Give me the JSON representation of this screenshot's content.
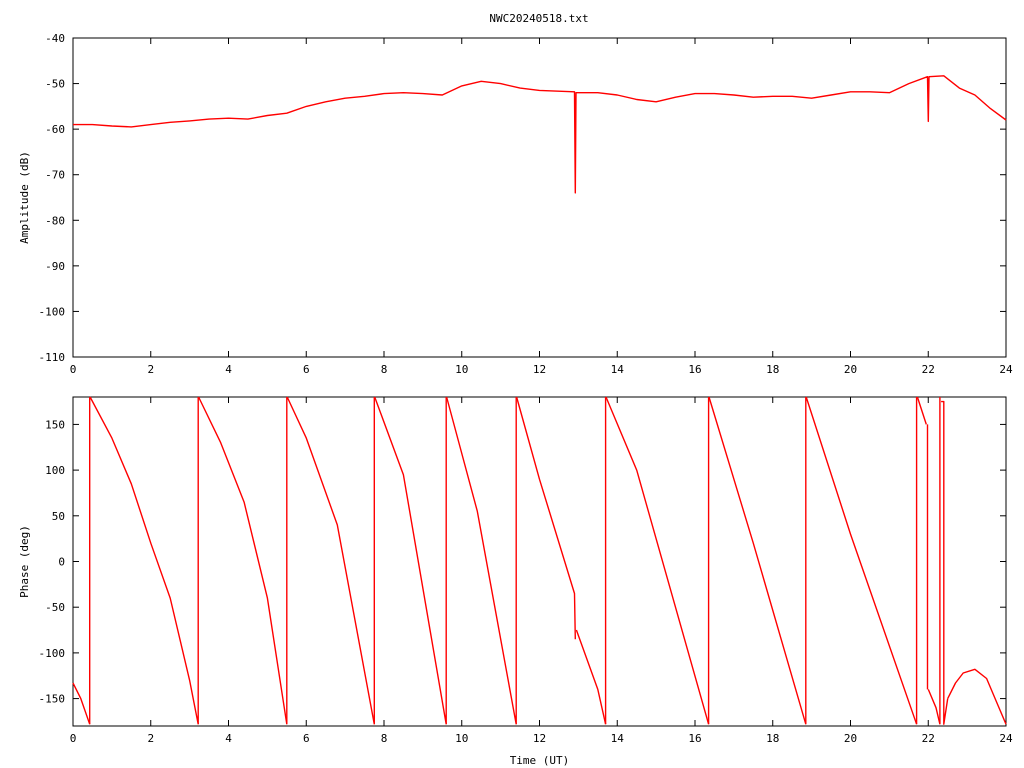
{
  "title": "NWC20240518.txt",
  "chart_data": [
    {
      "type": "line",
      "name": "amplitude-panel",
      "ylabel": "Amplitude (dB)",
      "xlabel": "",
      "xlim": [
        0,
        24
      ],
      "ylim": [
        -110,
        -40
      ],
      "xticks": [
        0,
        2,
        4,
        6,
        8,
        10,
        12,
        14,
        16,
        18,
        20,
        22,
        24
      ],
      "yticks": [
        -40,
        -50,
        -60,
        -70,
        -80,
        -90,
        -100,
        -110
      ],
      "grid": false,
      "color": "#ff0000",
      "series": [
        {
          "x": [
            0,
            0.5,
            1,
            1.5,
            2,
            2.5,
            3,
            3.5,
            4,
            4.5,
            5,
            5.5,
            6,
            6.5,
            7,
            7.5,
            8,
            8.5,
            9,
            9.5,
            10,
            10.5,
            11,
            11.5,
            12,
            12.9,
            12.92,
            12.94,
            13.5,
            14,
            14.5,
            15,
            15.5,
            16,
            16.5,
            17,
            17.5,
            18,
            18.5,
            19,
            19.5,
            20,
            20.5,
            21,
            21.5,
            21.98,
            22.0,
            22.02,
            22.4,
            22.8,
            23.2,
            23.6,
            24
          ],
          "y": [
            -59,
            -59,
            -59.3,
            -59.5,
            -59,
            -58.5,
            -58.2,
            -57.8,
            -57.6,
            -57.8,
            -57,
            -56.5,
            -55,
            -54,
            -53.2,
            -52.8,
            -52.2,
            -52,
            -52.2,
            -52.5,
            -50.5,
            -49.5,
            -50,
            -51,
            -51.5,
            -51.8,
            -74,
            -52,
            -52,
            -52.5,
            -53.5,
            -54,
            -53,
            -52.2,
            -52.2,
            -52.5,
            -53,
            -52.8,
            -52.8,
            -53.2,
            -52.5,
            -51.8,
            -51.8,
            -52,
            -50,
            -48.5,
            -58.3,
            -48.5,
            -48.3,
            -51,
            -52.5,
            -55.5,
            -58
          ]
        }
      ]
    },
    {
      "type": "line",
      "name": "phase-panel",
      "ylabel": "Phase (deg)",
      "xlabel": "Time (UT)",
      "xlim": [
        0,
        24
      ],
      "ylim": [
        -180,
        180
      ],
      "xticks": [
        0,
        2,
        4,
        6,
        8,
        10,
        12,
        14,
        16,
        18,
        20,
        22,
        24
      ],
      "yticks": [
        150,
        100,
        50,
        0,
        -50,
        -100,
        -150
      ],
      "grid": false,
      "color": "#ff0000",
      "series": [
        {
          "x": [
            0,
            0.2,
            0.43
          ],
          "y": [
            -133,
            -150,
            -178
          ]
        },
        {
          "x": [
            0.43,
            0.43
          ],
          "y": [
            -178,
            180
          ]
        },
        {
          "x": [
            0.44,
            1,
            1.5,
            2,
            2.5,
            3,
            3.22
          ],
          "y": [
            180,
            135,
            85,
            20,
            -40,
            -130,
            -178
          ]
        },
        {
          "x": [
            3.22,
            3.22
          ],
          "y": [
            -178,
            180
          ]
        },
        {
          "x": [
            3.23,
            3.8,
            4.4,
            5,
            5.5
          ],
          "y": [
            180,
            130,
            65,
            -40,
            -178
          ]
        },
        {
          "x": [
            5.5,
            5.5
          ],
          "y": [
            -178,
            180
          ]
        },
        {
          "x": [
            5.51,
            6,
            6.8,
            7.75
          ],
          "y": [
            180,
            135,
            40,
            -178
          ]
        },
        {
          "x": [
            7.75,
            7.75
          ],
          "y": [
            -178,
            180
          ]
        },
        {
          "x": [
            7.76,
            8.5,
            9.6
          ],
          "y": [
            180,
            95,
            -178
          ]
        },
        {
          "x": [
            9.6,
            9.6
          ],
          "y": [
            -178,
            180
          ]
        },
        {
          "x": [
            9.61,
            10.4,
            11.4
          ],
          "y": [
            180,
            55,
            -178
          ]
        },
        {
          "x": [
            11.4,
            11.4
          ],
          "y": [
            -178,
            180
          ]
        },
        {
          "x": [
            11.41,
            12,
            12.9,
            12.92
          ],
          "y": [
            180,
            90,
            -35,
            -85
          ]
        },
        {
          "x": [
            12.95,
            13.5,
            13.7
          ],
          "y": [
            -75,
            -140,
            -178
          ]
        },
        {
          "x": [
            13.7,
            13.7
          ],
          "y": [
            -178,
            180
          ]
        },
        {
          "x": [
            13.71,
            14.5,
            16.35
          ],
          "y": [
            180,
            100,
            -178
          ]
        },
        {
          "x": [
            16.35,
            16.35
          ],
          "y": [
            -178,
            180
          ]
        },
        {
          "x": [
            16.36,
            17.5,
            18.85
          ],
          "y": [
            180,
            20,
            -178
          ]
        },
        {
          "x": [
            18.85,
            18.85
          ],
          "y": [
            -178,
            180
          ]
        },
        {
          "x": [
            18.86,
            20,
            21.7
          ],
          "y": [
            180,
            30,
            -178
          ]
        },
        {
          "x": [
            21.7,
            21.7
          ],
          "y": [
            -178,
            180
          ]
        },
        {
          "x": [
            21.72,
            21.95
          ],
          "y": [
            180,
            150
          ]
        },
        {
          "x": [
            21.98,
            21.98
          ],
          "y": [
            150,
            -140
          ]
        },
        {
          "x": [
            22.0,
            22.2,
            22.3
          ],
          "y": [
            -140,
            -160,
            -178
          ]
        },
        {
          "x": [
            22.3,
            22.3
          ],
          "y": [
            -178,
            180
          ]
        },
        {
          "x": [
            22.33,
            22.4,
            22.4,
            22.5
          ],
          "y": [
            175,
            175,
            -178,
            -150
          ]
        },
        {
          "x": [
            22.5,
            22.7,
            22.9,
            23.2,
            23.5,
            23.8,
            24
          ],
          "y": [
            -150,
            -133,
            -122,
            -118,
            -128,
            -158,
            -178
          ]
        }
      ]
    }
  ]
}
